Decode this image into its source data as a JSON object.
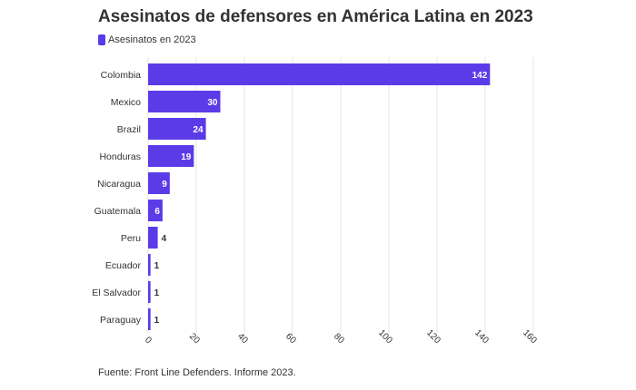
{
  "title": "Asesinatos de defensores en América Latina en 2023",
  "source": "Fuente: Front Line Defenders. Informe 2023.",
  "colors": {
    "bar": "#5b3be8",
    "grid": "#e6e6e6",
    "text": "#333333",
    "label_inside": "#ffffff"
  },
  "chart_data": {
    "type": "bar",
    "orientation": "horizontal",
    "title": "Asesinatos de defensores en América Latina en 2023",
    "categories": [
      "Colombia",
      "Mexico",
      "Brazil",
      "Honduras",
      "Nicaragua",
      "Guatemala",
      "Peru",
      "Ecuador",
      "El Salvador",
      "Paraguay"
    ],
    "series": [
      {
        "name": "Asesinatos en 2023",
        "values": [
          142,
          30,
          24,
          19,
          9,
          6,
          4,
          1,
          1,
          1
        ]
      }
    ],
    "xlim": [
      0,
      160
    ],
    "xticks": [
      0,
      20,
      40,
      60,
      80,
      100,
      120,
      140,
      160
    ],
    "grid": true,
    "legend": "top-left",
    "data_labels": true
  }
}
